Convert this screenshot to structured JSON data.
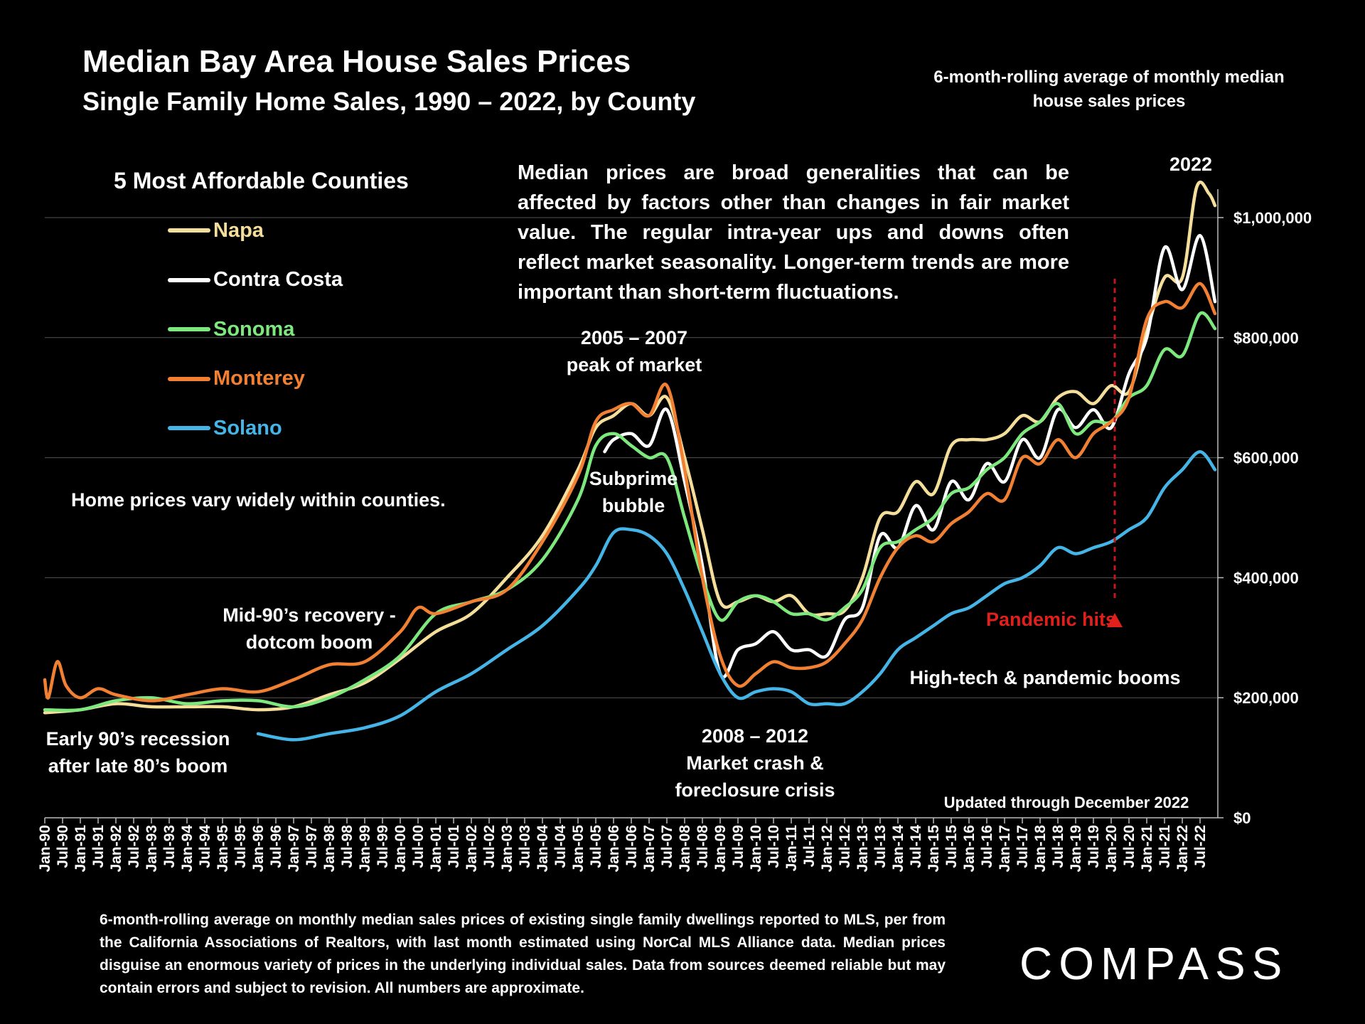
{
  "header": {
    "title": "Median Bay Area House Sales Prices",
    "subtitle": "Single Family Home Sales, 1990 – 2022, by County",
    "note": "6-month-rolling average of monthly median house sales prices"
  },
  "legend": {
    "title": "5 Most Affordable Counties"
  },
  "description": "Median prices are broad generalities that can be affected by factors other than changes in fair market value. The regular intra-year ups and downs often reflect market seasonality. Longer-term trends are more important than short-term fluctuations.",
  "annotations": {
    "peak_year": "2022",
    "peak_label_1": "2005 – 2007",
    "peak_label_2": "peak of market",
    "subprime_1": "Subprime",
    "subprime_2": "bubble",
    "vary": "Home prices vary widely within counties.",
    "mid90_1": "Mid-90’s recovery -",
    "mid90_2": "dotcom boom",
    "early90_1": "Early 90’s recession",
    "early90_2": "after late 80’s boom",
    "crash_1": "2008 – 2012",
    "crash_2": "Market crash &",
    "crash_3": "foreclosure crisis",
    "pandemic": "Pandemic hits",
    "hightech": "High-tech & pandemic booms",
    "updated": "Updated through December 2022"
  },
  "footnote": "6-month-rolling average on monthly median sales prices of existing single family dwellings reported to MLS, per from the California Associations of Realtors, with last month estimated using NorCal MLS Alliance data. Median prices disguise an enormous variety of prices in the underlying individual sales. Data from sources deemed reliable but may contain errors and subject to revision. All numbers are approximate.",
  "brand": {
    "logo_text": "COMPASS"
  },
  "chart_data": {
    "type": "line",
    "title": "Median Bay Area House Sales Prices",
    "xlabel": "",
    "ylabel": "",
    "x_range": [
      1990.0,
      2023.0
    ],
    "ylim": [
      0,
      1000000
    ],
    "grid": true,
    "y_ticks": [
      0,
      200000,
      400000,
      600000,
      800000,
      1000000
    ],
    "y_tick_labels": [
      "$0",
      "$200,000",
      "$400,000",
      "$600,000",
      "$800,000",
      "$1,000,000"
    ],
    "x_tick_labels": [
      "Jan-90",
      "Jul-90",
      "Jan-91",
      "Jul-91",
      "Jan-92",
      "Jul-92",
      "Jan-93",
      "Jul-93",
      "Jan-94",
      "Jul-94",
      "Jan-95",
      "Jul-95",
      "Jan-96",
      "Jul-96",
      "Jan-97",
      "Jul-97",
      "Jan-98",
      "Jul-98",
      "Jan-99",
      "Jul-99",
      "Jan-00",
      "Jul-00",
      "Jan-01",
      "Jul-01",
      "Jan-02",
      "Jul-02",
      "Jan-03",
      "Jul-03",
      "Jan-04",
      "Jul-04",
      "Jan-05",
      "Jul-05",
      "Jan-06",
      "Jul-06",
      "Jan-07",
      "Jul-07",
      "Jan-08",
      "Jul-08",
      "Jan-09",
      "Jul-09",
      "Jan-10",
      "Jul-10",
      "Jan-11",
      "Jul-11",
      "Jan-12",
      "Jul-12",
      "Jan-13",
      "Jul-13",
      "Jan-14",
      "Jul-14",
      "Jan-15",
      "Jul-15",
      "Jan-16",
      "Jul-16",
      "Jan-17",
      "Jul-17",
      "Jan-18",
      "Jul-18",
      "Jan-19",
      "Jul-19",
      "Jan-20",
      "Jul-20",
      "Jan-21",
      "Jul-21",
      "Jan-22",
      "Jul-22"
    ],
    "pandemic_x": 2020.1,
    "series": [
      {
        "name": "Napa",
        "color": "#f5dd9a",
        "points": [
          [
            1990.0,
            175000
          ],
          [
            1991.0,
            180000
          ],
          [
            1992.0,
            190000
          ],
          [
            1993.0,
            185000
          ],
          [
            1994.0,
            185000
          ],
          [
            1995.0,
            185000
          ],
          [
            1996.0,
            180000
          ],
          [
            1997.0,
            185000
          ],
          [
            1998.0,
            205000
          ],
          [
            1999.0,
            225000
          ],
          [
            2000.0,
            265000
          ],
          [
            2001.0,
            310000
          ],
          [
            2002.0,
            340000
          ],
          [
            2003.0,
            400000
          ],
          [
            2004.0,
            470000
          ],
          [
            2005.0,
            580000
          ],
          [
            2005.5,
            650000
          ],
          [
            2006.0,
            670000
          ],
          [
            2006.5,
            690000
          ],
          [
            2007.0,
            670000
          ],
          [
            2007.5,
            700000
          ],
          [
            2008.0,
            600000
          ],
          [
            2008.5,
            480000
          ],
          [
            2009.0,
            360000
          ],
          [
            2009.5,
            360000
          ],
          [
            2010.0,
            370000
          ],
          [
            2010.5,
            360000
          ],
          [
            2011.0,
            370000
          ],
          [
            2011.5,
            340000
          ],
          [
            2012.0,
            340000
          ],
          [
            2012.5,
            345000
          ],
          [
            2013.0,
            400000
          ],
          [
            2013.5,
            500000
          ],
          [
            2014.0,
            510000
          ],
          [
            2014.5,
            560000
          ],
          [
            2015.0,
            540000
          ],
          [
            2015.5,
            620000
          ],
          [
            2016.0,
            630000
          ],
          [
            2016.5,
            630000
          ],
          [
            2017.0,
            640000
          ],
          [
            2017.5,
            670000
          ],
          [
            2018.0,
            660000
          ],
          [
            2018.5,
            700000
          ],
          [
            2019.0,
            710000
          ],
          [
            2019.5,
            690000
          ],
          [
            2020.0,
            720000
          ],
          [
            2020.5,
            710000
          ],
          [
            2021.0,
            810000
          ],
          [
            2021.5,
            900000
          ],
          [
            2022.0,
            900000
          ],
          [
            2022.4,
            1050000
          ],
          [
            2022.75,
            1040000
          ],
          [
            2022.92,
            1020000
          ]
        ]
      },
      {
        "name": "Contra Costa",
        "color": "#ffffff",
        "points": [
          [
            2005.75,
            610000
          ],
          [
            2006.0,
            630000
          ],
          [
            2006.5,
            640000
          ],
          [
            2007.0,
            620000
          ],
          [
            2007.5,
            680000
          ],
          [
            2008.0,
            560000
          ],
          [
            2008.5,
            420000
          ],
          [
            2009.0,
            240000
          ],
          [
            2009.5,
            280000
          ],
          [
            2010.0,
            290000
          ],
          [
            2010.5,
            310000
          ],
          [
            2011.0,
            280000
          ],
          [
            2011.5,
            280000
          ],
          [
            2012.0,
            270000
          ],
          [
            2012.5,
            330000
          ],
          [
            2013.0,
            350000
          ],
          [
            2013.5,
            470000
          ],
          [
            2014.0,
            450000
          ],
          [
            2014.5,
            520000
          ],
          [
            2015.0,
            480000
          ],
          [
            2015.5,
            560000
          ],
          [
            2016.0,
            530000
          ],
          [
            2016.5,
            590000
          ],
          [
            2017.0,
            560000
          ],
          [
            2017.5,
            630000
          ],
          [
            2018.0,
            600000
          ],
          [
            2018.5,
            680000
          ],
          [
            2019.0,
            650000
          ],
          [
            2019.5,
            680000
          ],
          [
            2020.0,
            650000
          ],
          [
            2020.5,
            740000
          ],
          [
            2021.0,
            800000
          ],
          [
            2021.5,
            950000
          ],
          [
            2022.0,
            880000
          ],
          [
            2022.5,
            970000
          ],
          [
            2022.92,
            860000
          ]
        ]
      },
      {
        "name": "Sonoma",
        "color": "#7de87d",
        "points": [
          [
            1990.0,
            180000
          ],
          [
            1991.0,
            180000
          ],
          [
            1992.0,
            195000
          ],
          [
            1993.0,
            200000
          ],
          [
            1994.0,
            190000
          ],
          [
            1995.0,
            195000
          ],
          [
            1996.0,
            195000
          ],
          [
            1997.0,
            185000
          ],
          [
            1998.0,
            200000
          ],
          [
            1999.0,
            230000
          ],
          [
            2000.0,
            270000
          ],
          [
            2001.0,
            340000
          ],
          [
            2002.0,
            360000
          ],
          [
            2003.0,
            380000
          ],
          [
            2004.0,
            430000
          ],
          [
            2005.0,
            530000
          ],
          [
            2005.5,
            620000
          ],
          [
            2006.0,
            640000
          ],
          [
            2006.5,
            620000
          ],
          [
            2007.0,
            600000
          ],
          [
            2007.5,
            600000
          ],
          [
            2008.0,
            500000
          ],
          [
            2008.5,
            400000
          ],
          [
            2009.0,
            330000
          ],
          [
            2009.5,
            360000
          ],
          [
            2010.0,
            370000
          ],
          [
            2010.5,
            360000
          ],
          [
            2011.0,
            340000
          ],
          [
            2011.5,
            340000
          ],
          [
            2012.0,
            330000
          ],
          [
            2012.5,
            350000
          ],
          [
            2013.0,
            380000
          ],
          [
            2013.5,
            450000
          ],
          [
            2014.0,
            460000
          ],
          [
            2014.5,
            480000
          ],
          [
            2015.0,
            500000
          ],
          [
            2015.5,
            540000
          ],
          [
            2016.0,
            550000
          ],
          [
            2016.5,
            580000
          ],
          [
            2017.0,
            600000
          ],
          [
            2017.5,
            640000
          ],
          [
            2018.0,
            660000
          ],
          [
            2018.5,
            690000
          ],
          [
            2019.0,
            640000
          ],
          [
            2019.5,
            660000
          ],
          [
            2020.0,
            660000
          ],
          [
            2020.5,
            700000
          ],
          [
            2021.0,
            720000
          ],
          [
            2021.5,
            780000
          ],
          [
            2022.0,
            770000
          ],
          [
            2022.5,
            840000
          ],
          [
            2022.92,
            815000
          ]
        ]
      },
      {
        "name": "Monterey",
        "color": "#f28033",
        "points": [
          [
            1990.0,
            230000
          ],
          [
            1990.1,
            200000
          ],
          [
            1990.35,
            260000
          ],
          [
            1990.6,
            220000
          ],
          [
            1991.0,
            200000
          ],
          [
            1991.5,
            215000
          ],
          [
            1992.0,
            205000
          ],
          [
            1993.0,
            195000
          ],
          [
            1994.0,
            205000
          ],
          [
            1995.0,
            215000
          ],
          [
            1996.0,
            210000
          ],
          [
            1997.0,
            230000
          ],
          [
            1998.0,
            255000
          ],
          [
            1999.0,
            260000
          ],
          [
            2000.0,
            310000
          ],
          [
            2000.5,
            350000
          ],
          [
            2001.0,
            340000
          ],
          [
            2002.0,
            360000
          ],
          [
            2003.0,
            380000
          ],
          [
            2004.0,
            460000
          ],
          [
            2005.0,
            570000
          ],
          [
            2005.5,
            660000
          ],
          [
            2006.0,
            680000
          ],
          [
            2006.5,
            690000
          ],
          [
            2007.0,
            670000
          ],
          [
            2007.5,
            720000
          ],
          [
            2008.0,
            580000
          ],
          [
            2008.5,
            400000
          ],
          [
            2009.0,
            270000
          ],
          [
            2009.5,
            220000
          ],
          [
            2010.0,
            240000
          ],
          [
            2010.5,
            260000
          ],
          [
            2011.0,
            250000
          ],
          [
            2011.5,
            250000
          ],
          [
            2012.0,
            260000
          ],
          [
            2012.5,
            290000
          ],
          [
            2013.0,
            330000
          ],
          [
            2013.5,
            400000
          ],
          [
            2014.0,
            450000
          ],
          [
            2014.5,
            470000
          ],
          [
            2015.0,
            460000
          ],
          [
            2015.5,
            490000
          ],
          [
            2016.0,
            510000
          ],
          [
            2016.5,
            540000
          ],
          [
            2017.0,
            530000
          ],
          [
            2017.5,
            600000
          ],
          [
            2018.0,
            590000
          ],
          [
            2018.5,
            630000
          ],
          [
            2019.0,
            600000
          ],
          [
            2019.5,
            640000
          ],
          [
            2020.0,
            660000
          ],
          [
            2020.5,
            700000
          ],
          [
            2021.0,
            830000
          ],
          [
            2021.5,
            860000
          ],
          [
            2022.0,
            850000
          ],
          [
            2022.5,
            890000
          ],
          [
            2022.92,
            840000
          ]
        ]
      },
      {
        "name": "Solano",
        "color": "#45b5e8",
        "points": [
          [
            1996.0,
            140000
          ],
          [
            1997.0,
            130000
          ],
          [
            1998.0,
            140000
          ],
          [
            1999.0,
            150000
          ],
          [
            2000.0,
            170000
          ],
          [
            2001.0,
            210000
          ],
          [
            2002.0,
            240000
          ],
          [
            2003.0,
            280000
          ],
          [
            2004.0,
            320000
          ],
          [
            2005.0,
            380000
          ],
          [
            2005.5,
            420000
          ],
          [
            2006.0,
            475000
          ],
          [
            2006.5,
            480000
          ],
          [
            2007.0,
            470000
          ],
          [
            2007.5,
            440000
          ],
          [
            2008.0,
            380000
          ],
          [
            2008.5,
            310000
          ],
          [
            2009.0,
            240000
          ],
          [
            2009.5,
            200000
          ],
          [
            2010.0,
            210000
          ],
          [
            2010.5,
            215000
          ],
          [
            2011.0,
            210000
          ],
          [
            2011.5,
            190000
          ],
          [
            2012.0,
            190000
          ],
          [
            2012.5,
            190000
          ],
          [
            2013.0,
            210000
          ],
          [
            2013.5,
            240000
          ],
          [
            2014.0,
            280000
          ],
          [
            2014.5,
            300000
          ],
          [
            2015.0,
            320000
          ],
          [
            2015.5,
            340000
          ],
          [
            2016.0,
            350000
          ],
          [
            2016.5,
            370000
          ],
          [
            2017.0,
            390000
          ],
          [
            2017.5,
            400000
          ],
          [
            2018.0,
            420000
          ],
          [
            2018.5,
            450000
          ],
          [
            2019.0,
            440000
          ],
          [
            2019.5,
            450000
          ],
          [
            2020.0,
            460000
          ],
          [
            2020.5,
            480000
          ],
          [
            2021.0,
            500000
          ],
          [
            2021.5,
            550000
          ],
          [
            2022.0,
            580000
          ],
          [
            2022.5,
            610000
          ],
          [
            2022.92,
            580000
          ]
        ]
      }
    ]
  }
}
